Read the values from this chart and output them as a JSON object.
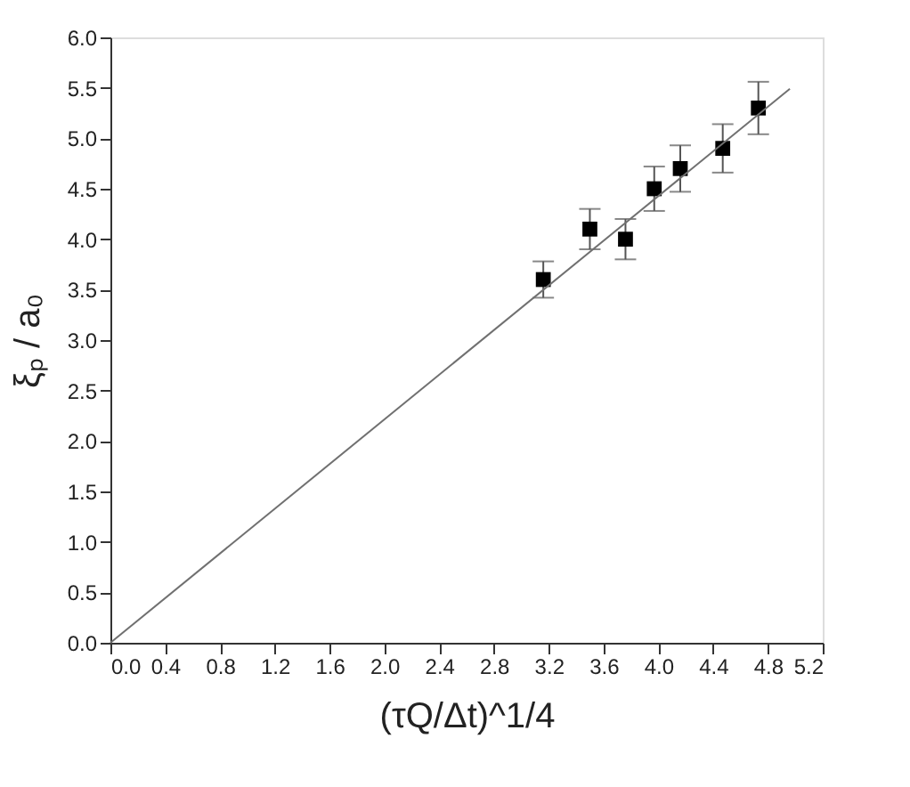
{
  "chart_data": {
    "type": "scatter",
    "xlabel": "(τQ/Δt)^1/4",
    "ylabel": "ξₚ / a₀",
    "xlim": [
      0,
      5.2
    ],
    "xticks": [
      {
        "value": 0,
        "label": "0.0"
      },
      0.4,
      0.8,
      1.2,
      1.6,
      {
        "value": 2,
        "label": "2.0"
      },
      2.4,
      2.8,
      3.2,
      3.6,
      {
        "value": 4,
        "label": "4.0"
      },
      4.4,
      4.8,
      5.2
    ],
    "ylim": [
      0,
      6.0
    ],
    "yticks": [
      {
        "value": 0,
        "label": "0.0"
      },
      0.5,
      {
        "value": 1,
        "label": "1.0"
      },
      1.5,
      {
        "value": 2,
        "label": "2.0"
      },
      2.5,
      {
        "value": 3,
        "label": "3.0"
      },
      3.5,
      {
        "value": 4,
        "label": "4.0"
      },
      4.5,
      {
        "value": 5,
        "label": "5.0"
      },
      5.5,
      {
        "value": 6,
        "label": "6.0"
      }
    ],
    "grid": false,
    "series": [
      {
        "marker": "square",
        "color": "#000000",
        "x": [
          3.16,
          3.5,
          3.76,
          3.97,
          4.16,
          4.47,
          4.73
        ],
        "values": [
          3.6,
          4.1,
          4.0,
          4.5,
          4.7,
          4.9,
          5.3
        ],
        "errors": [
          0.18,
          0.2,
          0.2,
          0.22,
          0.23,
          0.24,
          0.26
        ]
      },
      {
        "type": "line",
        "color": "#707070",
        "line_style": "solid",
        "x": [
          0,
          4.96
        ],
        "values": [
          0,
          5.49
        ]
      }
    ]
  }
}
